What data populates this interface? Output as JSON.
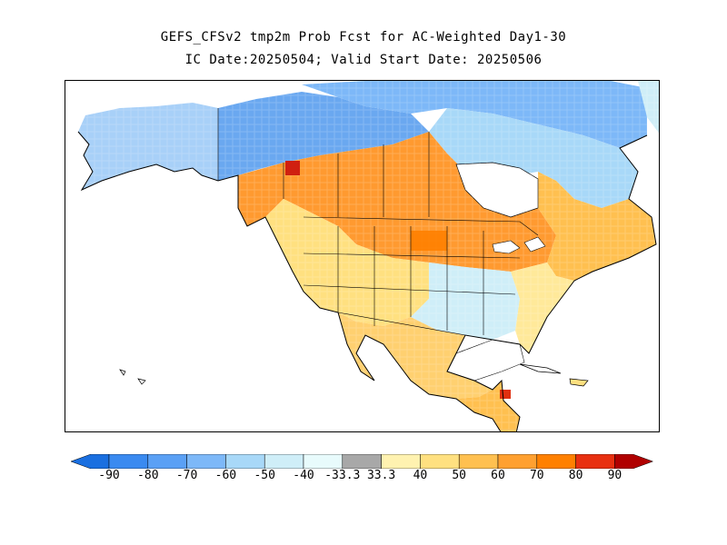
{
  "title": {
    "line1": "GEFS_CFSv2 tmp2m Prob Fcst for AC-Weighted Day1-30",
    "line2": "IC Date:20250504; Valid Start Date: 20250506"
  },
  "colorbar": {
    "labels": [
      "-90",
      "-80",
      "-70",
      "-60",
      "-50",
      "-40",
      "-33.3",
      "33.3",
      "40",
      "50",
      "60",
      "70",
      "80",
      "90"
    ],
    "colors": [
      "#1a6fe0",
      "#3a8af0",
      "#5aa0f5",
      "#7db8f8",
      "#a8d8f8",
      "#cfeef8",
      "#e8fbfc",
      "#a8a8a8",
      "#fff2b0",
      "#ffe080",
      "#ffc050",
      "#ffa030",
      "#ff8000",
      "#e83010",
      "#b00000"
    ]
  },
  "map": {
    "variable": "tmp2m",
    "regions": [
      {
        "name": "alaska",
        "category": "below",
        "color": "#a8d0f8"
      },
      {
        "name": "northwest-canada",
        "category": "below",
        "color": "#6aa8f0"
      },
      {
        "name": "prairies-great-lakes",
        "category": "above",
        "color": "#ff9a30"
      },
      {
        "name": "eastern-canada",
        "category": "above",
        "color": "#ffc050"
      },
      {
        "name": "hudson-bay",
        "category": "below",
        "color": "#a8d8f8"
      },
      {
        "name": "arctic-archipelago",
        "category": "below",
        "color": "#7db8f8"
      },
      {
        "name": "western-us",
        "category": "above",
        "color": "#ffe080"
      },
      {
        "name": "southern-plains",
        "category": "below",
        "color": "#cfeef8"
      },
      {
        "name": "southeast-us",
        "category": "above",
        "color": "#ffe99a"
      },
      {
        "name": "mexico",
        "category": "above",
        "color": "#ffd070"
      },
      {
        "name": "central-america",
        "category": "above",
        "color": "#ffc050"
      }
    ]
  }
}
